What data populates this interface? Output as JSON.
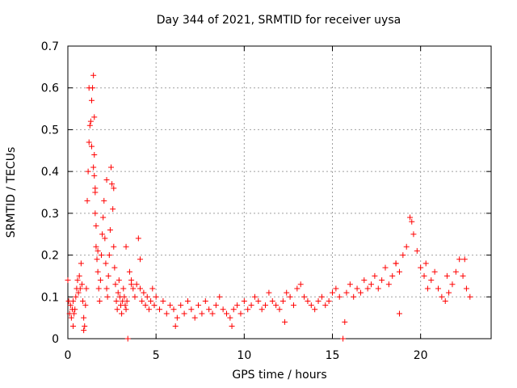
{
  "chart_data": {
    "type": "scatter",
    "title": "Day 344 of 2021, SRMTID for receiver uysa",
    "xlabel": "GPS time / hours",
    "ylabel": "SRMTID / TECUs",
    "xlim": [
      0,
      24
    ],
    "ylim": [
      0,
      0.7
    ],
    "xticks": [
      0,
      5,
      10,
      15,
      20
    ],
    "xtick_labels": [
      "0",
      "5",
      "10",
      "15",
      "20"
    ],
    "yticks": [
      0,
      0.1,
      0.2,
      0.3,
      0.4,
      0.5,
      0.6,
      0.7
    ],
    "ytick_labels": [
      "0",
      "0.1",
      "0.2",
      "0.3",
      "0.4",
      "0.5",
      "0.6",
      "0.7"
    ],
    "grid": true,
    "marker": "plus",
    "marker_color": "#ff0000",
    "series": [
      {
        "name": "SRMTID",
        "x": [
          0.0,
          0.05,
          0.1,
          0.15,
          0.2,
          0.25,
          0.3,
          0.35,
          0.4,
          0.45,
          0.5,
          0.55,
          0.6,
          0.65,
          0.7,
          0.75,
          0.8,
          0.85,
          0.9,
          0.95,
          1.0,
          1.05,
          1.1,
          1.15,
          1.2,
          1.25,
          1.3,
          1.35,
          1.4,
          1.45,
          1.5,
          1.5,
          1.5,
          1.55,
          1.55,
          1.6,
          1.6,
          1.65,
          1.7,
          1.75,
          1.8,
          1.85,
          1.9,
          1.95,
          2.0,
          2.05,
          2.1,
          2.15,
          2.2,
          2.25,
          2.3,
          2.35,
          2.4,
          2.45,
          2.5,
          2.55,
          2.6,
          2.65,
          2.7,
          2.75,
          2.8,
          2.85,
          2.9,
          2.95,
          3.0,
          3.05,
          3.1,
          3.15,
          3.2,
          3.25,
          3.3,
          3.35,
          3.4,
          3.5,
          3.6,
          3.7,
          3.8,
          3.9,
          4.0,
          4.1,
          4.2,
          4.3,
          4.4,
          4.5,
          4.6,
          4.7,
          4.8,
          4.9,
          5.0,
          5.2,
          5.4,
          5.6,
          5.8,
          6.0,
          6.2,
          6.4,
          6.6,
          6.8,
          7.0,
          7.2,
          7.4,
          7.6,
          7.8,
          8.0,
          8.2,
          8.4,
          8.6,
          8.8,
          9.0,
          9.2,
          9.4,
          9.6,
          9.8,
          10.0,
          10.2,
          10.4,
          10.6,
          10.8,
          11.0,
          11.2,
          11.4,
          11.6,
          11.8,
          12.0,
          12.2,
          12.4,
          12.6,
          12.8,
          13.0,
          13.2,
          13.4,
          13.6,
          13.8,
          14.0,
          14.2,
          14.4,
          14.6,
          14.8,
          15.0,
          15.2,
          15.4,
          15.6,
          15.8,
          16.0,
          16.2,
          16.4,
          16.6,
          16.8,
          17.0,
          17.2,
          17.4,
          17.6,
          17.8,
          18.0,
          18.2,
          18.4,
          18.6,
          18.8,
          19.0,
          19.2,
          19.4,
          19.6,
          19.8,
          20.0,
          20.2,
          20.4,
          20.6,
          20.8,
          21.0,
          21.2,
          21.4,
          21.6,
          21.8,
          22.0,
          22.2,
          22.4,
          22.6,
          22.8,
          1.2,
          1.35,
          1.45,
          1.55,
          1.7,
          2.2,
          2.6,
          3.6,
          4.1,
          18.6,
          19.5,
          20.3,
          21.5,
          22.5,
          0.3,
          0.9,
          3.3,
          6.1,
          9.3,
          12.3,
          15.7,
          18.8
        ],
        "y": [
          0.14,
          0.09,
          0.06,
          0.08,
          0.05,
          0.07,
          0.09,
          0.06,
          0.07,
          0.1,
          0.12,
          0.14,
          0.11,
          0.15,
          0.12,
          0.18,
          0.13,
          0.09,
          0.05,
          0.03,
          0.08,
          0.12,
          0.33,
          0.4,
          0.47,
          0.51,
          0.52,
          0.57,
          0.6,
          0.63,
          0.53,
          0.44,
          0.39,
          0.35,
          0.3,
          0.27,
          0.22,
          0.19,
          0.16,
          0.12,
          0.09,
          0.14,
          0.2,
          0.25,
          0.29,
          0.33,
          0.24,
          0.18,
          0.12,
          0.1,
          0.15,
          0.2,
          0.26,
          0.41,
          0.37,
          0.31,
          0.22,
          0.17,
          0.13,
          0.09,
          0.07,
          0.11,
          0.14,
          0.1,
          0.08,
          0.06,
          0.09,
          0.12,
          0.1,
          0.08,
          0.07,
          0.09,
          0.0,
          0.16,
          0.14,
          0.12,
          0.1,
          0.13,
          0.24,
          0.12,
          0.09,
          0.11,
          0.08,
          0.1,
          0.07,
          0.09,
          0.12,
          0.08,
          0.1,
          0.07,
          0.09,
          0.06,
          0.08,
          0.07,
          0.05,
          0.08,
          0.06,
          0.09,
          0.07,
          0.05,
          0.08,
          0.06,
          0.09,
          0.07,
          0.06,
          0.08,
          0.1,
          0.07,
          0.06,
          0.05,
          0.07,
          0.08,
          0.06,
          0.09,
          0.07,
          0.08,
          0.1,
          0.09,
          0.07,
          0.08,
          0.11,
          0.09,
          0.08,
          0.07,
          0.09,
          0.11,
          0.1,
          0.08,
          0.12,
          0.13,
          0.1,
          0.09,
          0.08,
          0.07,
          0.09,
          0.1,
          0.08,
          0.09,
          0.11,
          0.12,
          0.1,
          0.0,
          0.11,
          0.13,
          0.1,
          0.12,
          0.11,
          0.14,
          0.12,
          0.13,
          0.15,
          0.12,
          0.14,
          0.17,
          0.13,
          0.15,
          0.18,
          0.16,
          0.2,
          0.22,
          0.29,
          0.25,
          0.21,
          0.17,
          0.15,
          0.12,
          0.14,
          0.16,
          0.12,
          0.1,
          0.09,
          0.11,
          0.13,
          0.16,
          0.19,
          0.15,
          0.12,
          0.1,
          0.6,
          0.46,
          0.41,
          0.36,
          0.21,
          0.38,
          0.36,
          0.13,
          0.19,
          0.18,
          0.28,
          0.18,
          0.15,
          0.19,
          0.03,
          0.02,
          0.22,
          0.03,
          0.03,
          0.04,
          0.04,
          0.06
        ]
      }
    ]
  }
}
